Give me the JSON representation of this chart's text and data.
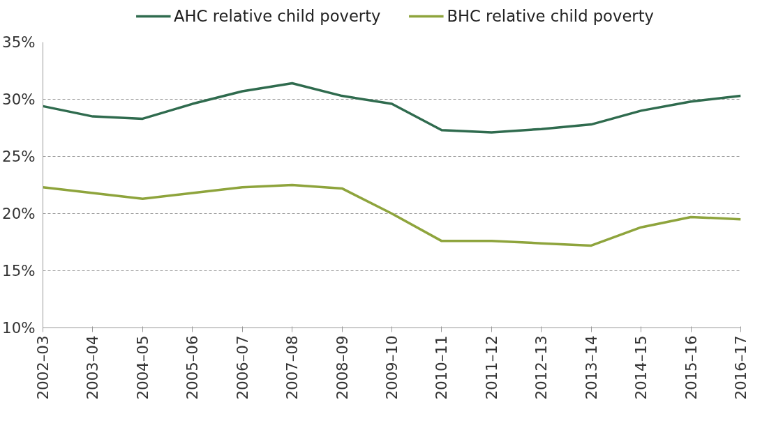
{
  "chart_data": {
    "type": "line",
    "categories": [
      "2002–03",
      "2003–04",
      "2004–05",
      "2005–06",
      "2006–07",
      "2007–08",
      "2008–09",
      "2009–10",
      "2010–11",
      "2011–12",
      "2012–13",
      "2013–14",
      "2014–15",
      "2015–16",
      "2016–17"
    ],
    "series": [
      {
        "name": "AHC relative child poverty",
        "color": "#2f6b4e",
        "values": [
          29.4,
          28.5,
          28.3,
          29.6,
          30.7,
          31.4,
          30.3,
          29.6,
          27.3,
          27.1,
          27.4,
          27.8,
          29.0,
          29.8,
          30.3
        ]
      },
      {
        "name": "BHC relative child poverty",
        "color": "#8ea43c",
        "values": [
          22.3,
          21.8,
          21.3,
          21.8,
          22.3,
          22.5,
          22.2,
          20.0,
          17.6,
          17.6,
          17.4,
          17.2,
          18.8,
          19.7,
          19.5
        ]
      }
    ],
    "ylim": [
      10,
      35
    ],
    "yticks": [
      {
        "value": 10,
        "label": "10%"
      },
      {
        "value": 15,
        "label": "15%"
      },
      {
        "value": 20,
        "label": "20%"
      },
      {
        "value": 25,
        "label": "25%"
      },
      {
        "value": 30,
        "label": "30%"
      },
      {
        "value": 35,
        "label": "35%"
      }
    ],
    "grid": "y",
    "legend": "top",
    "marker": "none",
    "line_style": "solid"
  }
}
